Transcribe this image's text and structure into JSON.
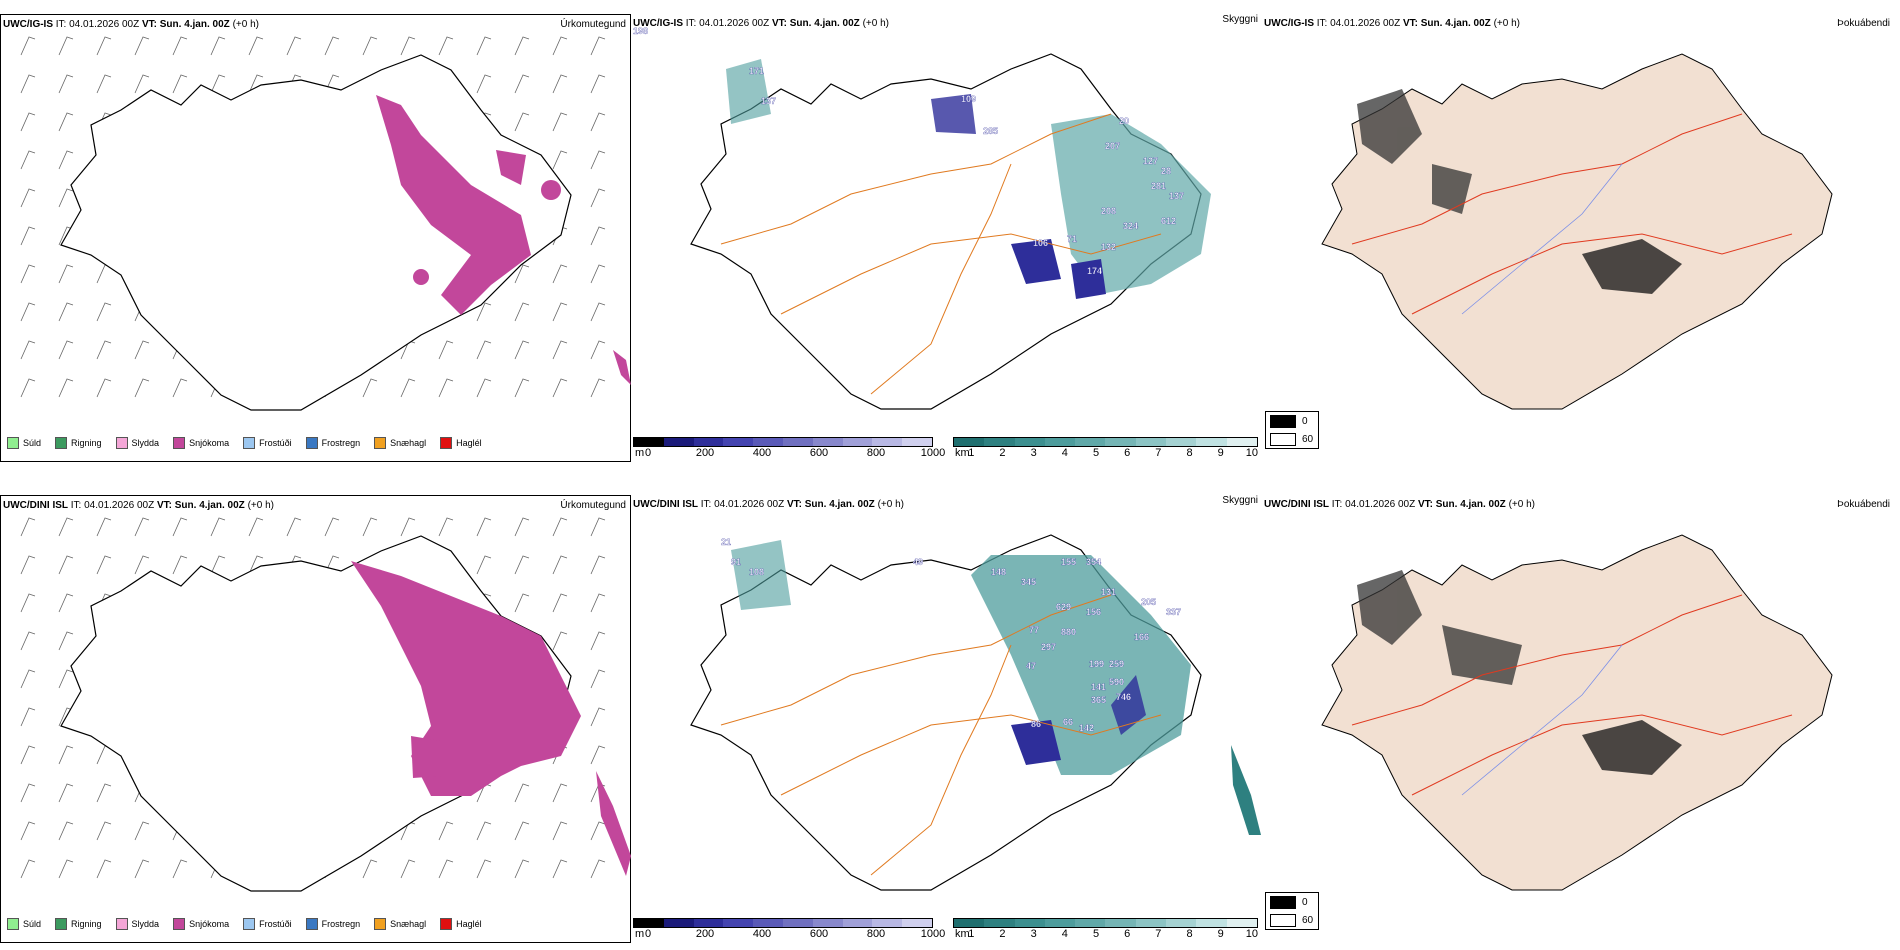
{
  "panels": [
    {
      "id": "top-left",
      "model": "UWC/IG-IS",
      "it_label": "IT:",
      "it_value": "04.01.2026 00Z",
      "vt_label": "VT:",
      "vt_value": "Sun. 4.jan. 00Z",
      "offset": "(+0 h)",
      "title": "Úrkomutegund"
    },
    {
      "id": "top-mid",
      "model": "UWC/IG-IS",
      "it_label": "IT:",
      "it_value": "04.01.2026 00Z",
      "vt_label": "VT:",
      "vt_value": "Sun. 4.jan. 00Z",
      "offset": "(+0 h)",
      "title": "Skyggni"
    },
    {
      "id": "top-right",
      "model": "UWC/IG-IS",
      "it_label": "IT:",
      "it_value": "04.01.2026 00Z",
      "vt_label": "VT:",
      "vt_value": "Sun. 4.jan. 00Z",
      "offset": "(+0 h)",
      "title": "Þokuábendi"
    },
    {
      "id": "bot-left",
      "model": "UWC/DINI ISL",
      "it_label": "IT:",
      "it_value": "04.01.2026 00Z",
      "vt_label": "VT:",
      "vt_value": "Sun. 4.jan. 00Z",
      "offset": "(+0 h)",
      "title": "Úrkomutegund"
    },
    {
      "id": "bot-mid",
      "model": "UWC/DINI ISL",
      "it_label": "IT:",
      "it_value": "04.01.2026 00Z",
      "vt_label": "VT:",
      "vt_value": "Sun. 4.jan. 00Z",
      "offset": "(+0 h)",
      "title": "Skyggni"
    },
    {
      "id": "bot-right",
      "model": "UWC/DINI ISL",
      "it_label": "IT:",
      "it_value": "04.01.2026 00Z",
      "vt_label": "VT:",
      "vt_value": "Sun. 4.jan. 00Z",
      "offset": "(+0 h)",
      "title": "Þokuábendi"
    }
  ],
  "precip_legend": [
    {
      "label": "Súld",
      "color": "#90ee90"
    },
    {
      "label": "Rigning",
      "color": "#3c9a5f"
    },
    {
      "label": "Slydda",
      "color": "#f4a6d7"
    },
    {
      "label": "Snjókoma",
      "color": "#c2479b"
    },
    {
      "label": "Frostúði",
      "color": "#9cc7f0"
    },
    {
      "label": "Frostregn",
      "color": "#3a78c2"
    },
    {
      "label": "Snæhagl",
      "color": "#f0a020"
    },
    {
      "label": "Haglél",
      "color": "#e01010"
    }
  ],
  "cloud_base_scale": {
    "unit": "m",
    "ticks": [
      "0",
      "200",
      "400",
      "600",
      "800",
      "1000"
    ],
    "colors": [
      "#000000",
      "#1a1a7a",
      "#2e2e9a",
      "#4444b0",
      "#5a5ab8",
      "#7070c0",
      "#8888cc",
      "#a0a0d8",
      "#b8b8e4",
      "#d0d0ee"
    ]
  },
  "visibility_scale": {
    "unit": "km",
    "ticks": [
      "1",
      "2",
      "3",
      "4",
      "5",
      "6",
      "7",
      "8",
      "9",
      "10"
    ],
    "colors": [
      "#1f6f6f",
      "#2e8080",
      "#3c8f8f",
      "#4d9c9c",
      "#60a8a8",
      "#75b5b5",
      "#8cc4c4",
      "#a5d2d2",
      "#c0e2e2",
      "#e0f0f0"
    ]
  },
  "fog_scale": {
    "items": [
      {
        "value": "0",
        "color": "#000000"
      },
      {
        "value": "60",
        "color": "#ffffff"
      }
    ]
  },
  "labels_top": [
    "198",
    "171",
    "137",
    "109",
    "285",
    "20",
    "207",
    "127",
    "28",
    "281",
    "137",
    "208",
    "324",
    "612",
    "106",
    "71",
    "132",
    "174"
  ],
  "labels_bot": [
    "21",
    "91",
    "108",
    "49",
    "148",
    "345",
    "155",
    "354",
    "131",
    "205",
    "337",
    "629",
    "156",
    "880",
    "77",
    "297",
    "166",
    "47",
    "199",
    "259",
    "141",
    "590",
    "365",
    "746",
    "86",
    "66",
    "142"
  ]
}
